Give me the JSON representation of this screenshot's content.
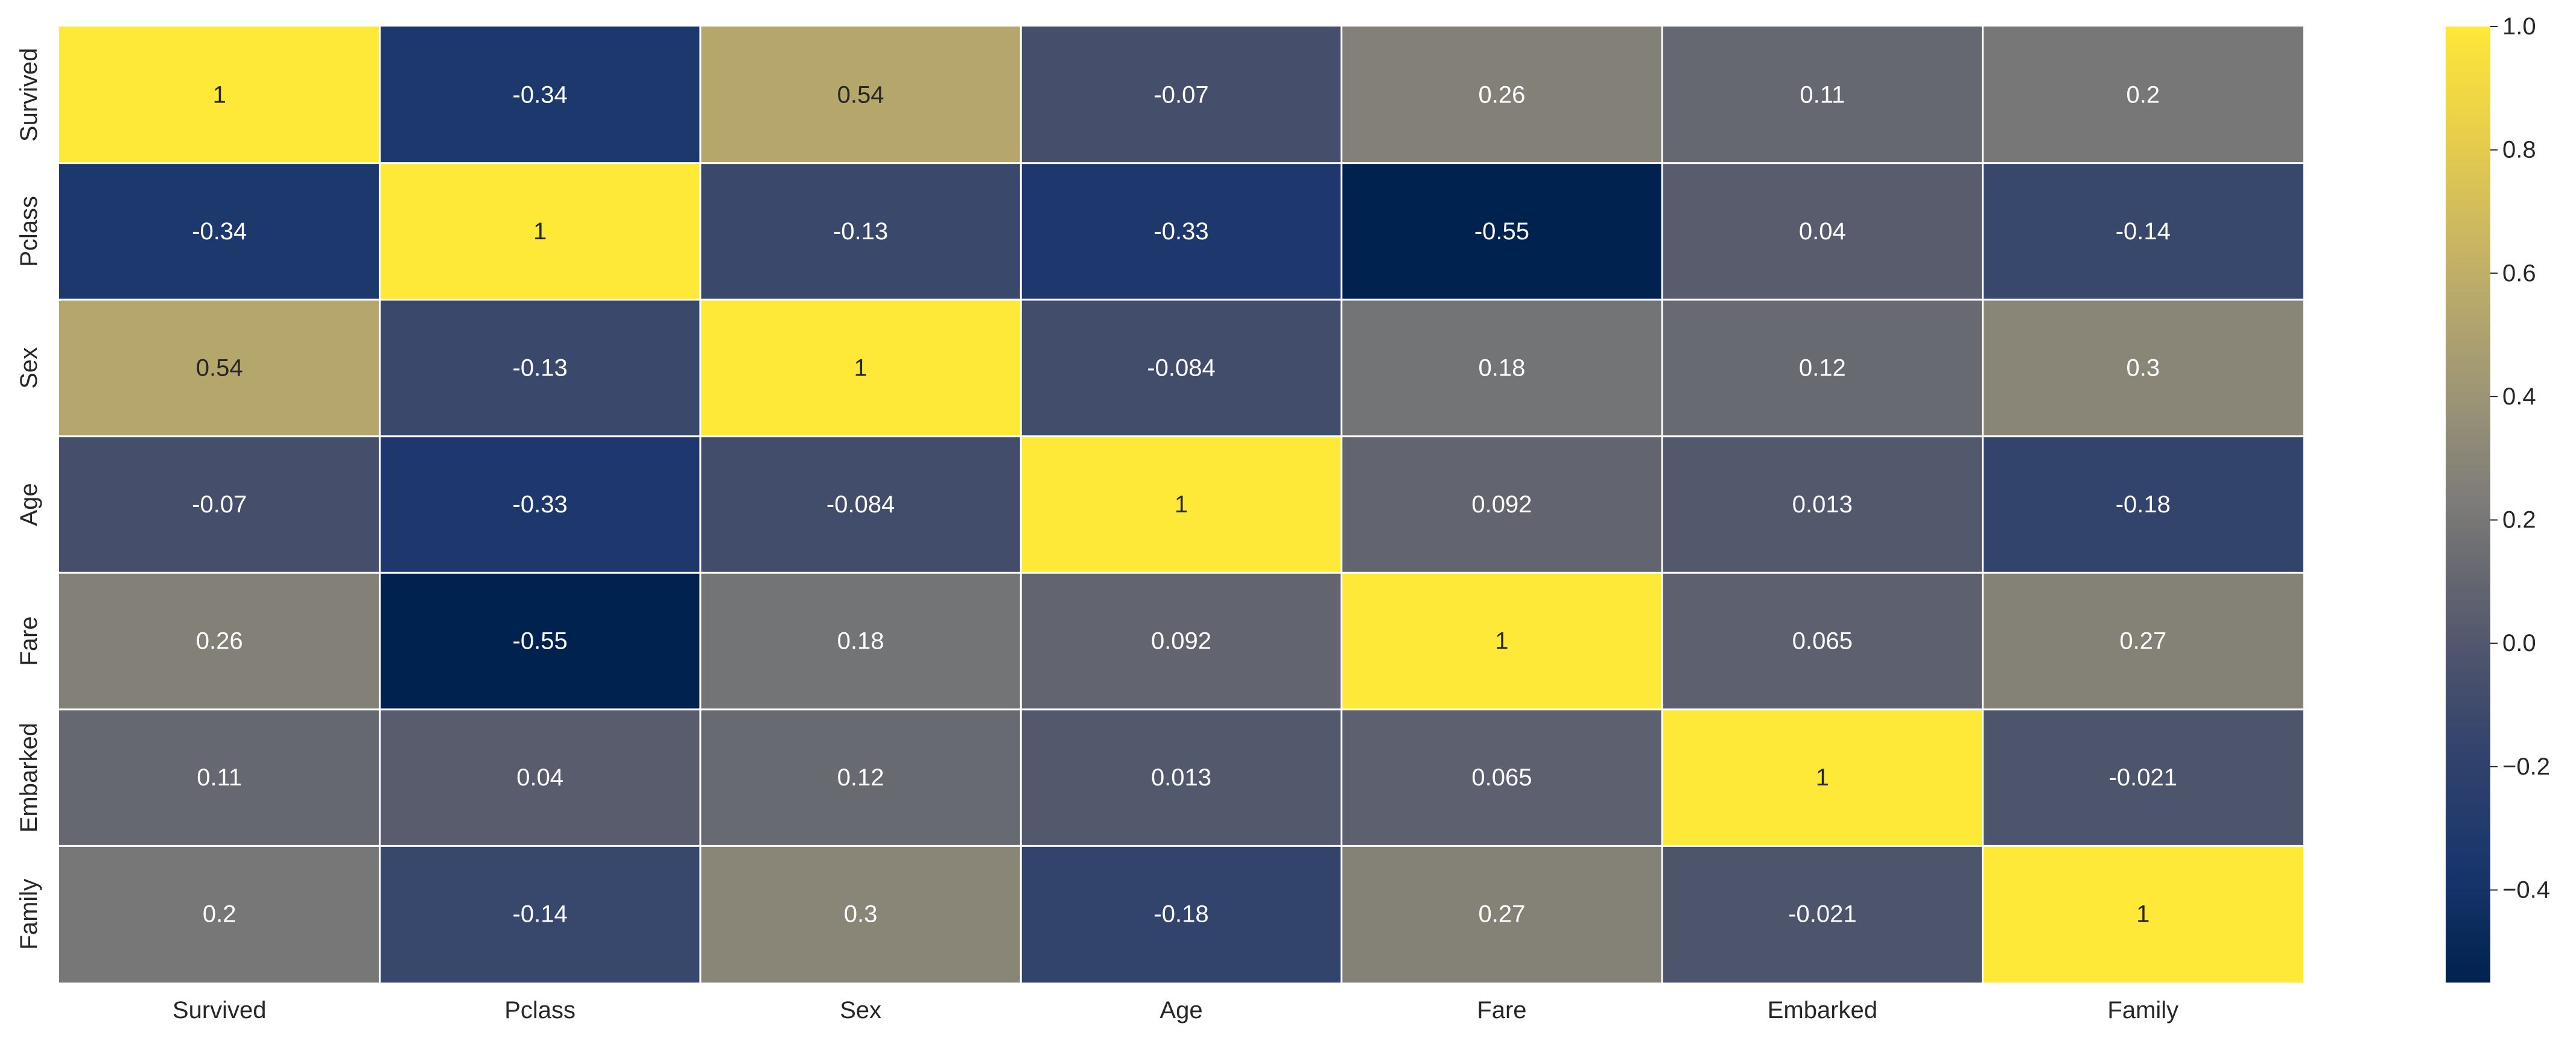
{
  "chart_data": {
    "type": "heatmap",
    "title": "",
    "xlabel": "",
    "ylabel": "",
    "colormap": "cividis",
    "categories": [
      "Survived",
      "Pclass",
      "Sex",
      "Age",
      "Fare",
      "Embarked",
      "Family"
    ],
    "x_tick_labels": [
      "Survived",
      "Pclass",
      "Sex",
      "Age",
      "Fare",
      "Embarked",
      "Family"
    ],
    "y_tick_labels": [
      "Survived",
      "Pclass",
      "Sex",
      "Age",
      "Fare",
      "Embarked",
      "Family"
    ],
    "values": [
      [
        1,
        -0.34,
        0.54,
        -0.07,
        0.26,
        0.11,
        0.2
      ],
      [
        -0.34,
        1,
        -0.13,
        -0.33,
        -0.55,
        0.04,
        -0.14
      ],
      [
        0.54,
        -0.13,
        1,
        -0.084,
        0.18,
        0.12,
        0.3
      ],
      [
        -0.07,
        -0.33,
        -0.084,
        1,
        0.092,
        0.013,
        -0.18
      ],
      [
        0.26,
        -0.55,
        0.18,
        0.092,
        1,
        0.065,
        0.27
      ],
      [
        0.11,
        0.04,
        0.12,
        0.013,
        0.065,
        1,
        -0.021
      ],
      [
        0.2,
        -0.14,
        0.3,
        -0.18,
        0.27,
        -0.021,
        1
      ]
    ],
    "value_labels": [
      [
        "1",
        "-0.34",
        "0.54",
        "-0.07",
        "0.26",
        "0.11",
        "0.2"
      ],
      [
        "-0.34",
        "1",
        "-0.13",
        "-0.33",
        "-0.55",
        "0.04",
        "-0.14"
      ],
      [
        "0.54",
        "-0.13",
        "1",
        "-0.084",
        "0.18",
        "0.12",
        "0.3"
      ],
      [
        "-0.07",
        "-0.33",
        "-0.084",
        "1",
        "0.092",
        "0.013",
        "-0.18"
      ],
      [
        "0.26",
        "-0.55",
        "0.18",
        "0.092",
        "1",
        "0.065",
        "0.27"
      ],
      [
        "0.11",
        "0.04",
        "0.12",
        "0.013",
        "0.065",
        "1",
        "-0.021"
      ],
      [
        "0.2",
        "-0.14",
        "0.3",
        "-0.18",
        "0.27",
        "-0.021",
        "1"
      ]
    ],
    "vmin": -0.55,
    "vmax": 1,
    "colorbar": {
      "ticks": [
        1.0,
        0.8,
        0.6,
        0.4,
        0.2,
        0.0,
        -0.2,
        -0.4
      ],
      "tick_labels": [
        "1.0",
        "0.8",
        "0.6",
        "0.4",
        "0.2",
        "0.0",
        "−0.2",
        "−0.4"
      ]
    },
    "annotations": true,
    "grid_lines": "white",
    "legend": "colorbar-right"
  }
}
